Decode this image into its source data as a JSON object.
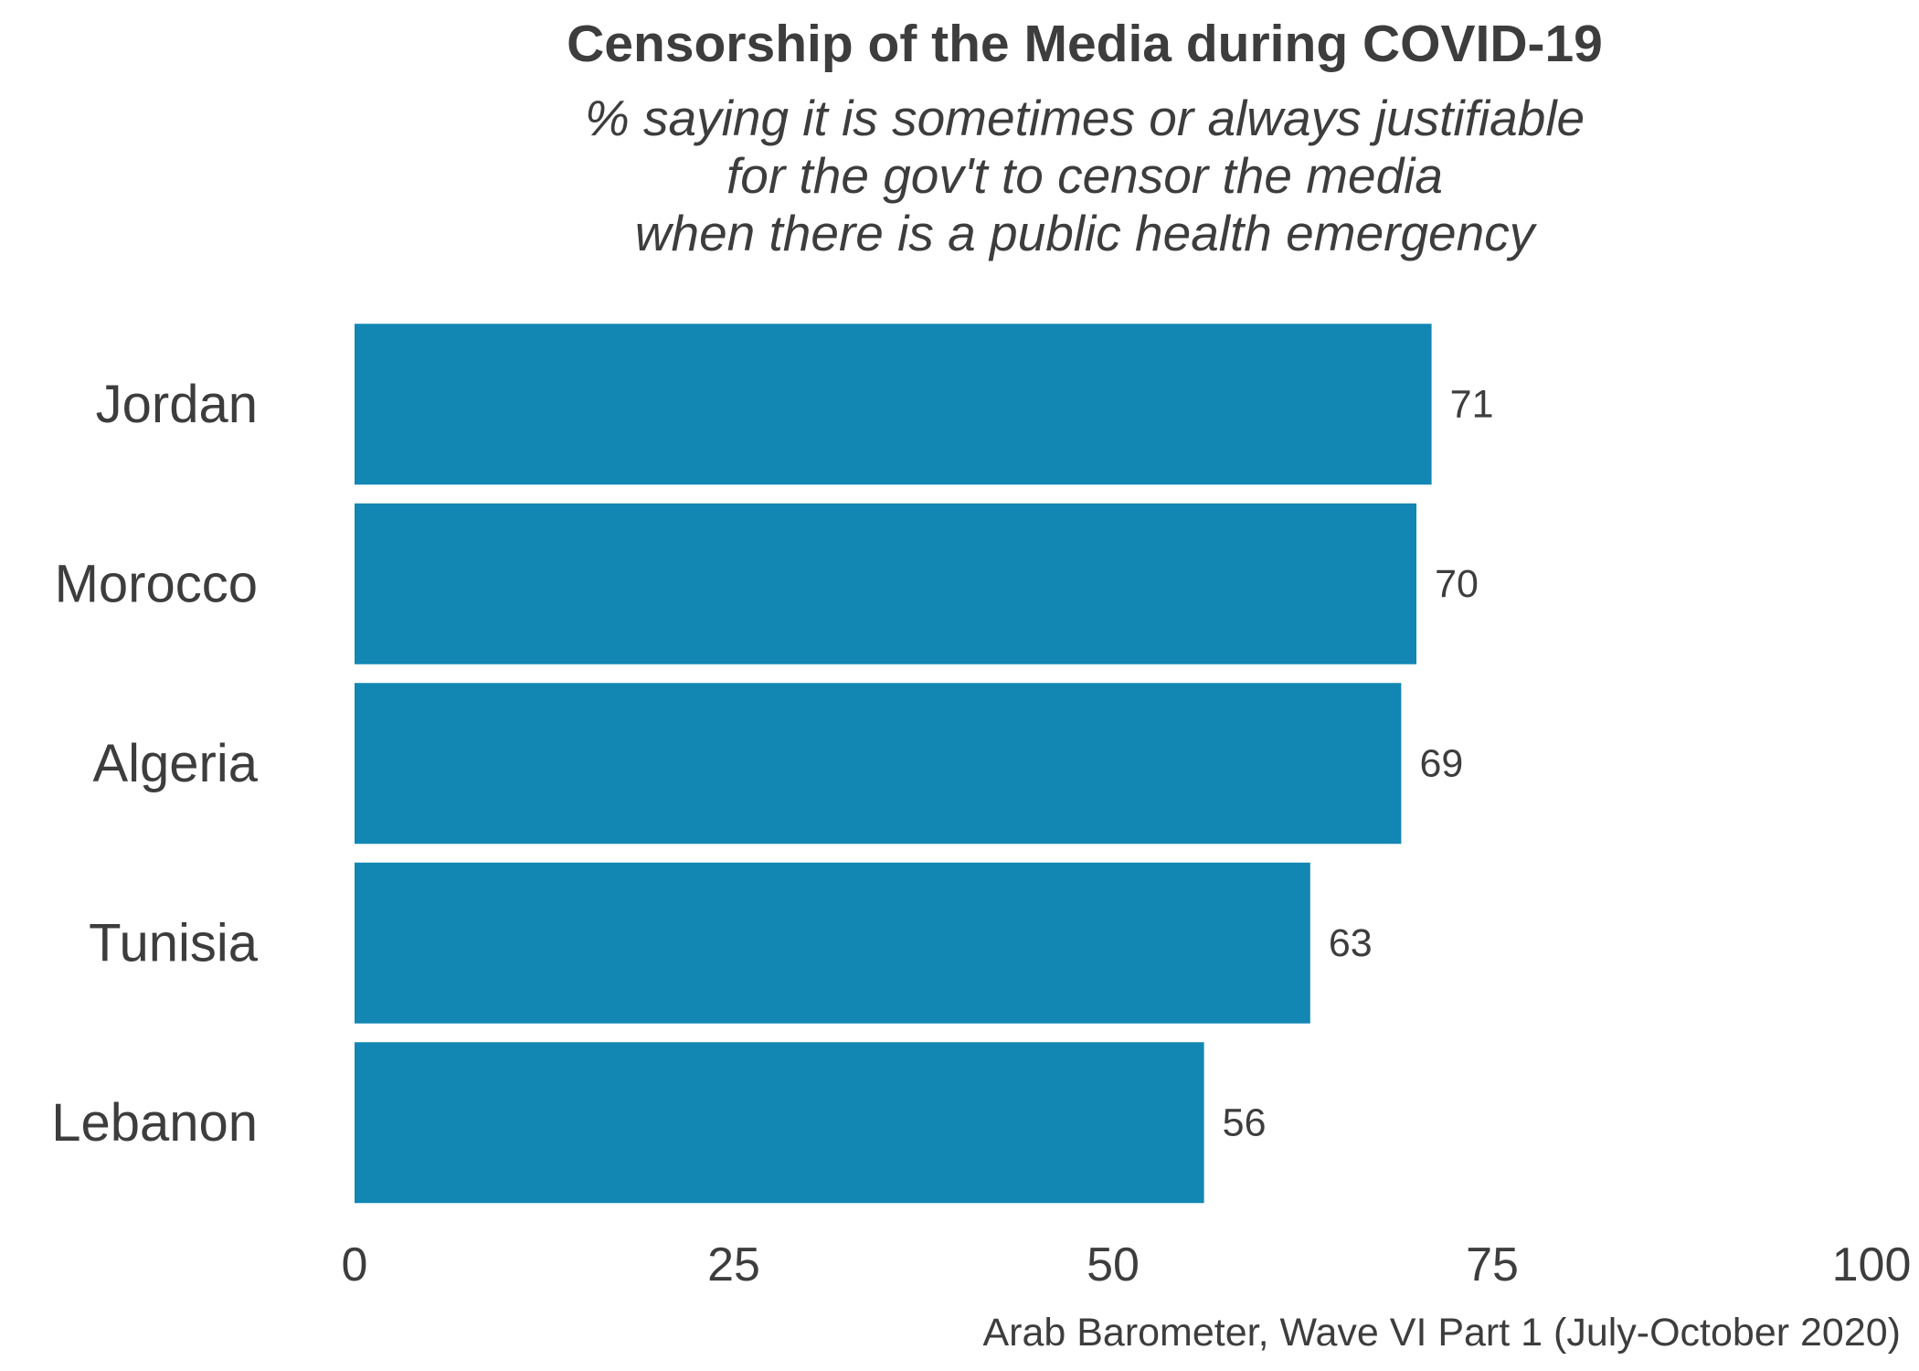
{
  "chart_data": {
    "type": "bar",
    "orientation": "horizontal",
    "title": "Censorship of the Media during COVID-19",
    "subtitle_lines": [
      "% saying it is sometimes or always justifiable",
      "for the gov't to censor the media",
      "when there is a public health emergency"
    ],
    "categories": [
      "Jordan",
      "Morocco",
      "Algeria",
      "Tunisia",
      "Lebanon"
    ],
    "values": [
      71,
      70,
      69,
      63,
      56
    ],
    "xlim": [
      0,
      100
    ],
    "xticks": [
      0,
      25,
      50,
      75,
      100
    ],
    "grid": false,
    "legend": "none",
    "caption": "Arab Barometer, Wave VI Part 1 (July-October 2020)",
    "bar_color": "#1287b3"
  }
}
